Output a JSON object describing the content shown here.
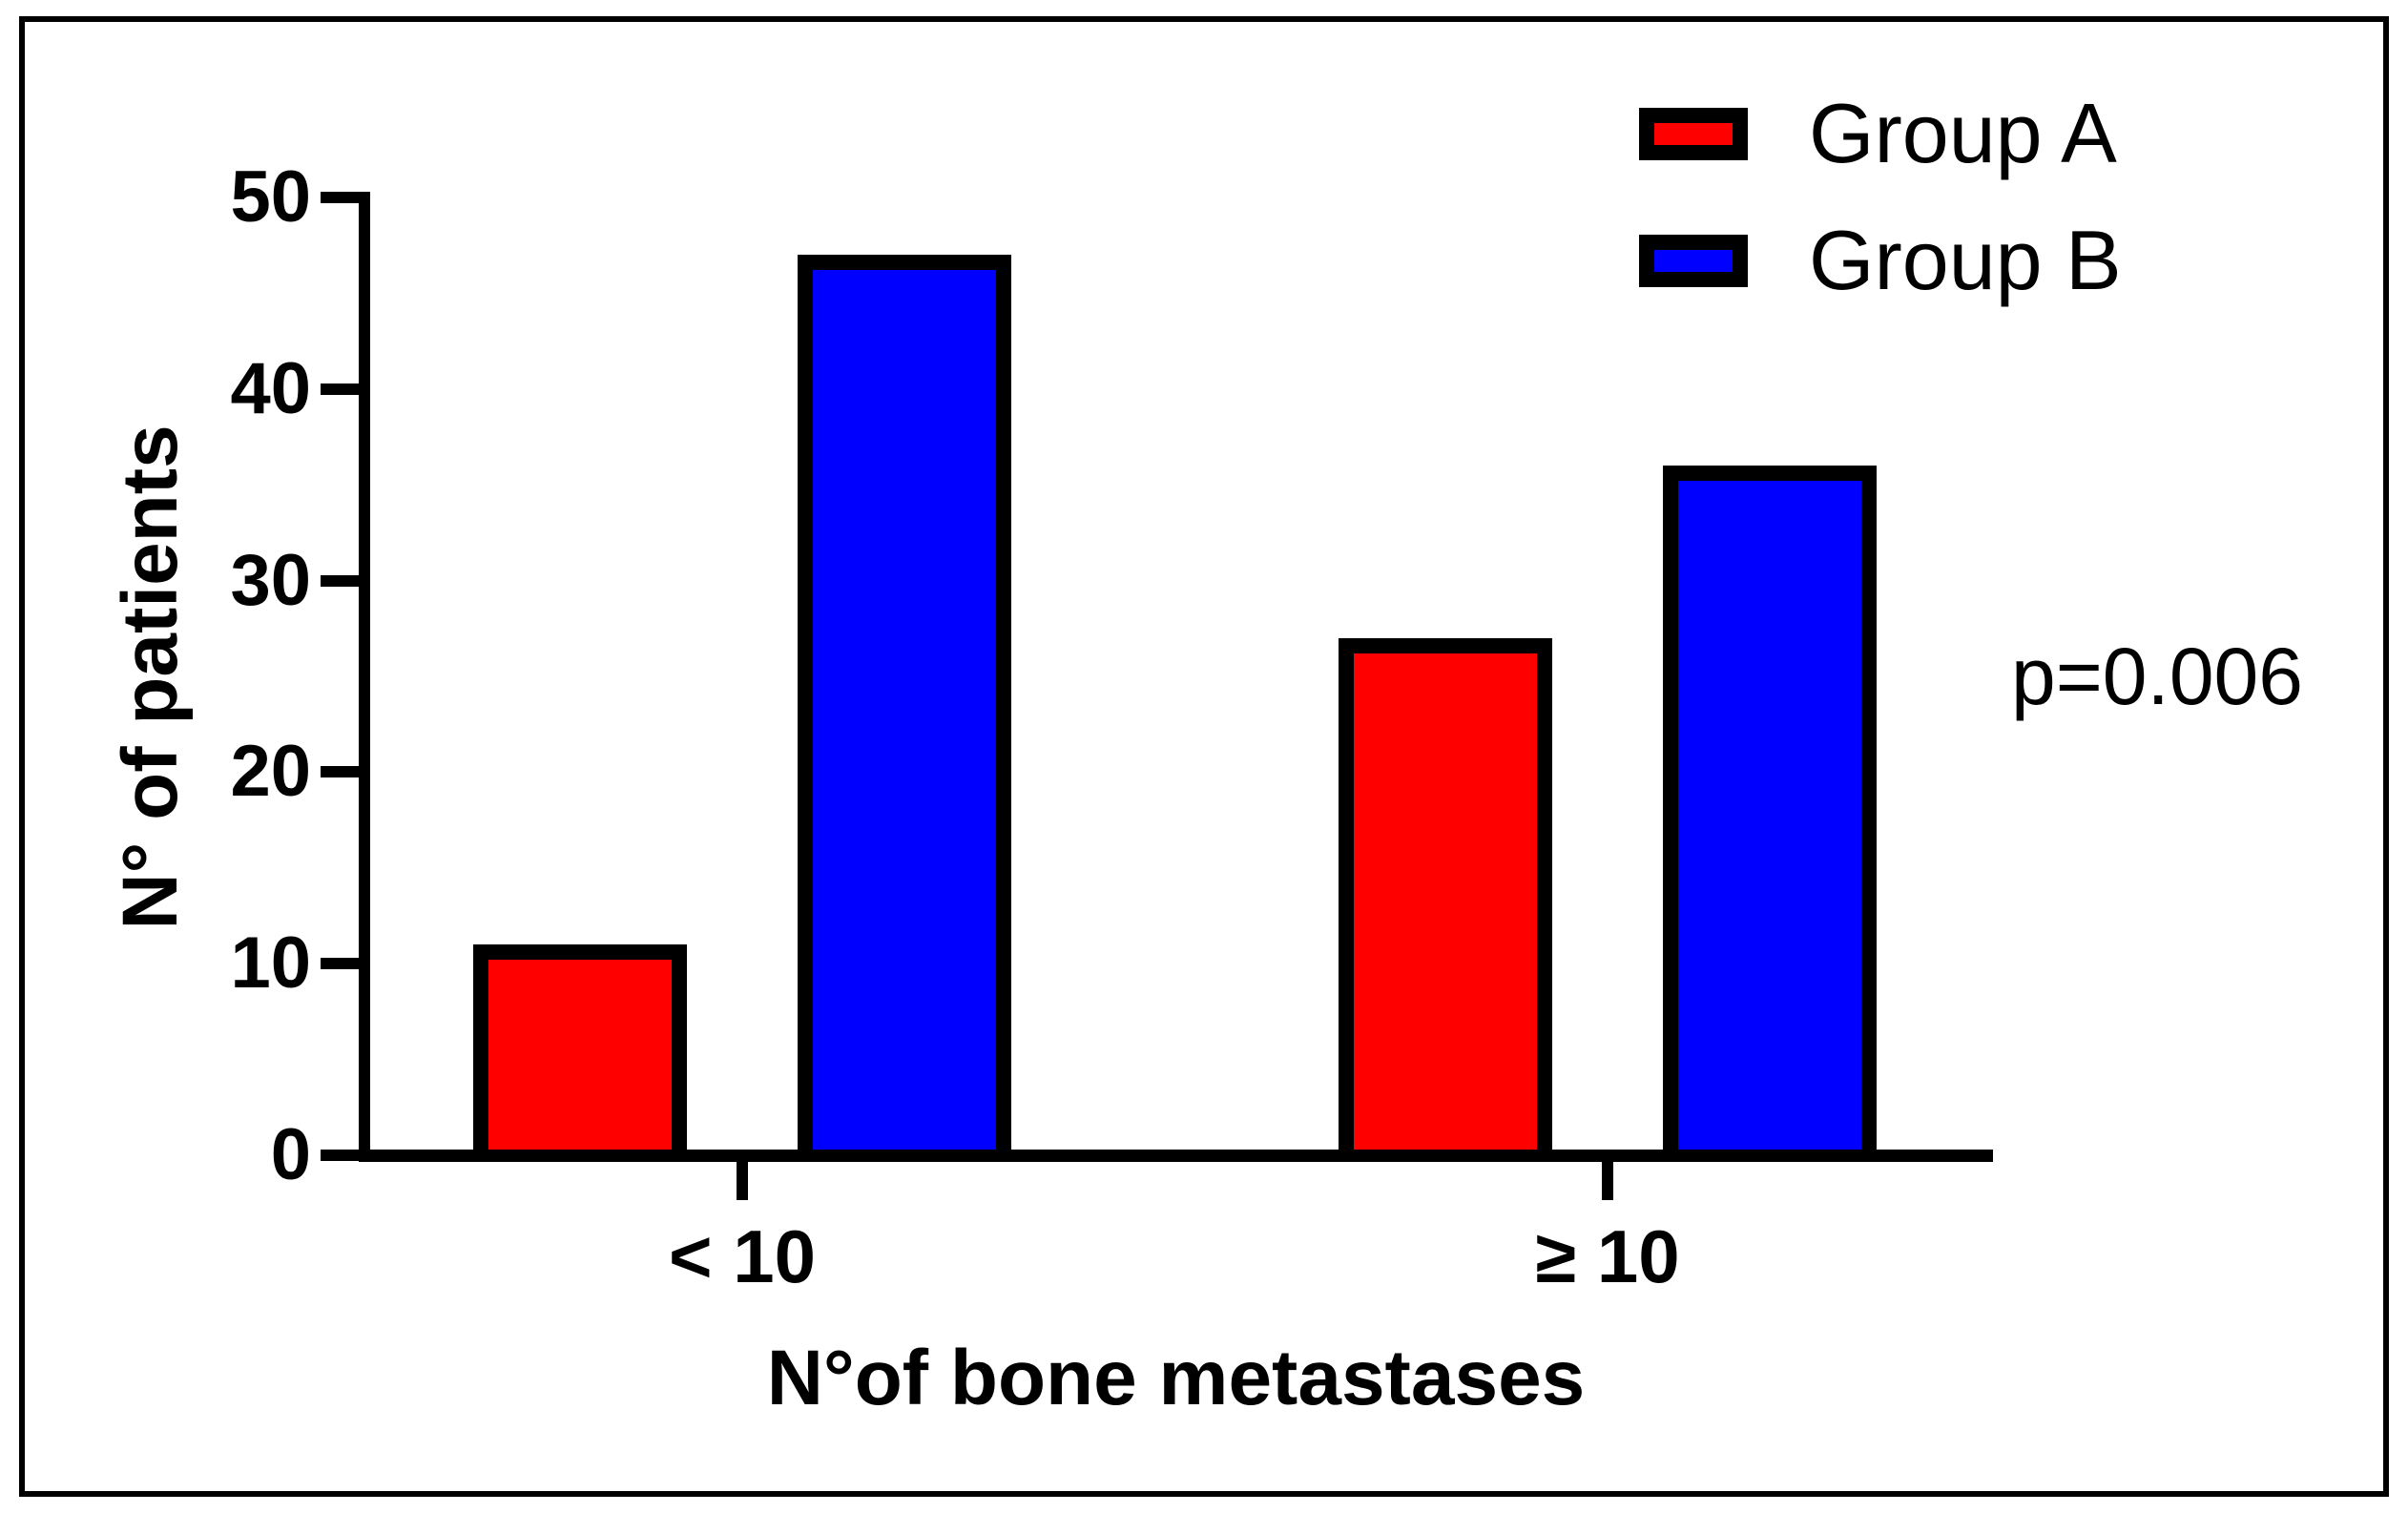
{
  "chart_data": {
    "type": "bar",
    "categories": [
      "< 10",
      "≥ 10"
    ],
    "series": [
      {
        "name": "Group A",
        "color": "#ff0000",
        "values": [
          11,
          27
        ]
      },
      {
        "name": "Group B",
        "color": "#0000ff",
        "values": [
          47,
          36
        ]
      }
    ],
    "title": "",
    "xlabel": "N°of bone metastases",
    "ylabel": "N° of patients",
    "ylim": [
      0,
      50
    ],
    "yticks": [
      0,
      10,
      20,
      30,
      40,
      50
    ],
    "annotation": "p=0.006",
    "legend_position": "top-right",
    "grid": false,
    "bar_border_color": "#000000",
    "axis_color": "#000000"
  }
}
